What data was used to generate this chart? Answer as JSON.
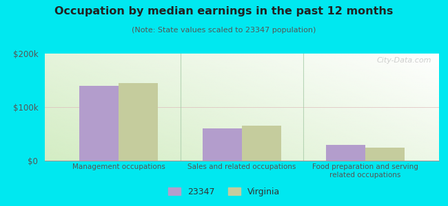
{
  "title": "Occupation by median earnings in the past 12 months",
  "subtitle": "(Note: State values scaled to 23347 population)",
  "categories": [
    "Management occupations",
    "Sales and related occupations",
    "Food preparation and serving\nrelated occupations"
  ],
  "series": {
    "23347": [
      140000,
      60000,
      30000
    ],
    "Virginia": [
      145000,
      65000,
      25000
    ]
  },
  "colors": {
    "23347": "#b39dcc",
    "Virginia": "#c5cc9d"
  },
  "legend_labels": [
    "23347",
    "Virginia"
  ],
  "ylim": [
    0,
    200000
  ],
  "ytick_labels": [
    "$0",
    "$100k",
    "$200k"
  ],
  "ytick_vals": [
    0,
    100000,
    200000
  ],
  "background_outer": "#00e8f0",
  "background_inner_bottom_left": "#d4edc4",
  "background_inner_top_right": "#f8fff8",
  "watermark": "City-Data.com",
  "bar_width": 0.32
}
